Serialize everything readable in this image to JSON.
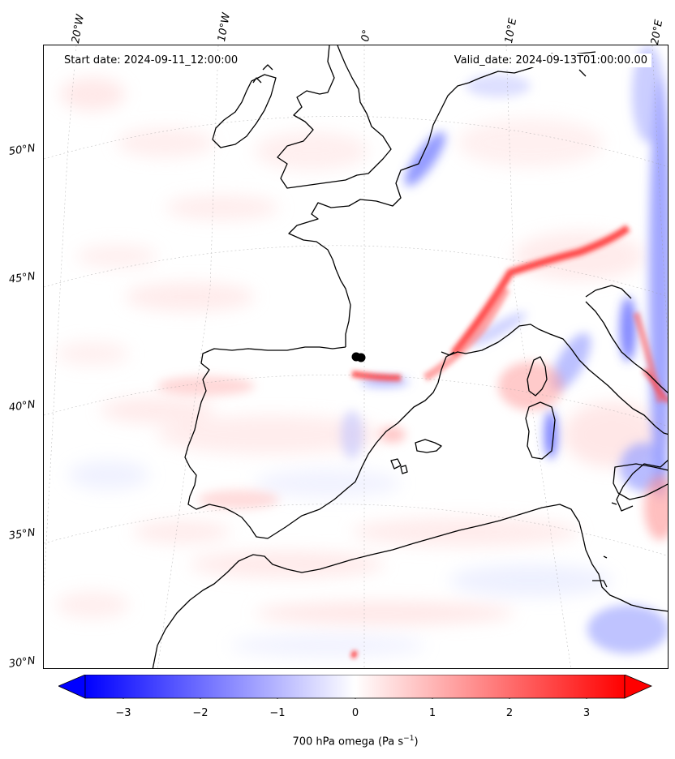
{
  "header": {
    "start_date": "Start date: 2024-09-11_12:00:00",
    "valid_date": "Valid_date: 2024-09-13T01:00:00.00"
  },
  "longitude_labels": [
    "20°W",
    "10°W",
    "0°",
    "10°E",
    "20°E"
  ],
  "latitude_labels": [
    "50°N",
    "45°N",
    "40°N",
    "35°N",
    "30°N"
  ],
  "colorbar": {
    "ticks": [
      "−3",
      "−2",
      "−1",
      "0",
      "1",
      "2",
      "3"
    ],
    "label": "700 hPa omega (Pa s",
    "label_sup": "−1",
    "label_end": ")",
    "range": [
      -3.5,
      3.5
    ],
    "colors": {
      "low": "#0000ff",
      "mid": "#ffffff",
      "high": "#ff0000"
    }
  },
  "map": {
    "field": "700 hPa omega",
    "coastline_color": "#000000",
    "marker": "black-dot"
  }
}
